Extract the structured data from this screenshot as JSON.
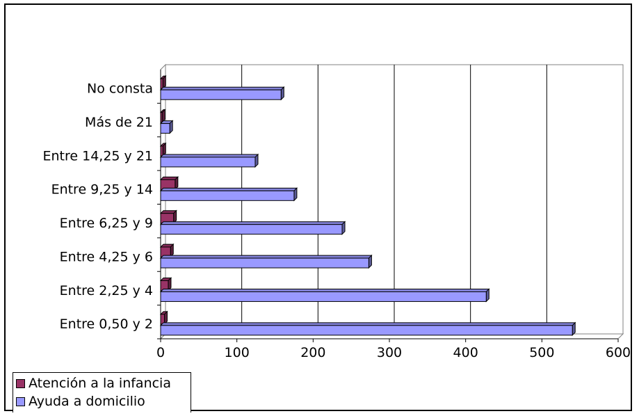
{
  "chart_data": {
    "type": "bar",
    "orientation": "horizontal",
    "style": "3d",
    "categories": [
      "No consta",
      "Más de 21",
      "Entre 14,25 y 21",
      "Entre 9,25 y 14",
      "Entre 6,25 y 9",
      "Entre 4,25 y 6",
      "Entre 2,25 y 4",
      "Entre 0,50 y 2"
    ],
    "series": [
      {
        "name": "Atención a la infancia",
        "color": "#993366",
        "values": [
          3,
          2,
          3,
          19,
          17,
          13,
          10,
          5
        ]
      },
      {
        "name": "Ayuda a domicilio",
        "color": "#9999ff",
        "values": [
          158,
          12,
          124,
          175,
          238,
          273,
          427,
          540
        ]
      }
    ],
    "xlim": [
      0,
      600
    ],
    "xticks": [
      "0",
      "100",
      "200",
      "300",
      "400",
      "500",
      "600"
    ],
    "grid": true,
    "legend": "bottom-left"
  }
}
